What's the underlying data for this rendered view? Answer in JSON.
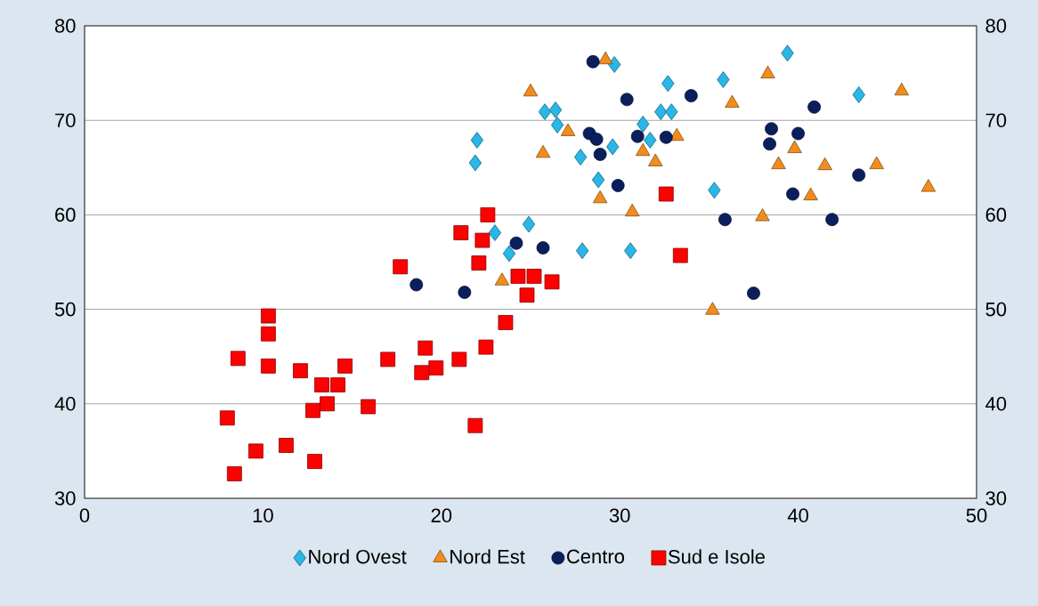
{
  "chart_data": {
    "type": "scatter",
    "xlim": [
      0,
      50
    ],
    "xticks": [
      0,
      10,
      20,
      30,
      40,
      50
    ],
    "ylim": [
      30,
      80
    ],
    "yticks": [
      30,
      40,
      50,
      60,
      70,
      80
    ],
    "y2lim": [
      30,
      80
    ],
    "y2ticks": [
      30,
      40,
      50,
      60,
      70,
      80
    ],
    "grid": "y",
    "legend": "bottom",
    "series": [
      {
        "name": "Nord Ovest",
        "color": "#29b6e8",
        "marker": "diamond",
        "x": [
          29.7,
          32.7,
          35.8,
          25.8,
          26.4,
          26.5,
          32.3,
          32.9,
          31.3,
          31.7,
          29.6,
          27.8,
          22.0,
          21.9,
          28.8,
          35.3,
          39.4,
          43.4,
          23.0,
          24.9,
          23.8,
          27.9,
          30.6
        ],
        "values": [
          75.9,
          73.9,
          74.3,
          70.9,
          71.1,
          69.5,
          70.9,
          70.9,
          69.6,
          67.9,
          67.2,
          66.1,
          67.9,
          65.5,
          63.7,
          62.6,
          77.1,
          72.7,
          58.1,
          59.0,
          55.9,
          56.2,
          56.2
        ]
      },
      {
        "name": "Nord Est",
        "color": "#f28c1c",
        "marker": "triangle",
        "x": [
          29.2,
          25.0,
          36.3,
          27.1,
          33.2,
          29.0,
          25.7,
          31.3,
          32.0,
          28.9,
          30.7,
          23.4,
          38.3,
          45.8,
          39.8,
          38.9,
          41.5,
          44.4,
          47.3,
          40.7,
          38.0,
          35.2
        ],
        "values": [
          76.4,
          73.0,
          71.8,
          68.8,
          68.3,
          null,
          66.5,
          66.7,
          65.6,
          61.7,
          60.3,
          53.0,
          74.9,
          73.1,
          67.0,
          65.3,
          65.2,
          65.3,
          62.9,
          62.0,
          59.8,
          49.9
        ]
      },
      {
        "name": "Centro",
        "color": "#0a1f5c",
        "marker": "circle",
        "x": [
          28.5,
          30.4,
          34.0,
          28.3,
          28.7,
          28.9,
          31.0,
          32.6,
          29.9,
          35.9,
          24.2,
          25.7,
          21.3,
          40.9,
          38.5,
          38.4,
          40.0,
          43.4,
          39.7,
          41.9,
          37.5,
          18.6
        ],
        "values": [
          76.2,
          72.2,
          72.6,
          68.6,
          68.0,
          66.4,
          68.3,
          68.2,
          63.1,
          59.5,
          57.0,
          56.5,
          51.8,
          71.4,
          69.1,
          67.5,
          68.6,
          64.2,
          62.2,
          59.5,
          51.7,
          52.6
        ]
      },
      {
        "name": "Sud e Isole",
        "color": "#ff0000",
        "marker": "square",
        "x": [
          22.6,
          21.1,
          22.3,
          22.1,
          17.7,
          24.3,
          25.2,
          26.2,
          24.8,
          23.6,
          10.3,
          32.6,
          33.4,
          10.3,
          8.6,
          10.3,
          12.1,
          14.6,
          13.3,
          14.2,
          13.6,
          12.8,
          15.9,
          17.0,
          19.1,
          19.7,
          18.9,
          21.0,
          22.5,
          21.9,
          8.0,
          9.6,
          11.3,
          12.9,
          8.4
        ],
        "values": [
          60.0,
          58.1,
          57.3,
          54.9,
          54.5,
          53.5,
          53.5,
          52.9,
          51.5,
          48.6,
          49.3,
          62.2,
          55.7,
          47.4,
          44.8,
          44.0,
          43.5,
          44.0,
          42.0,
          42.0,
          40.0,
          39.3,
          39.7,
          44.7,
          45.9,
          43.8,
          43.3,
          44.7,
          46.0,
          37.7,
          38.5,
          35.0,
          35.6,
          33.9,
          32.6
        ]
      }
    ]
  }
}
